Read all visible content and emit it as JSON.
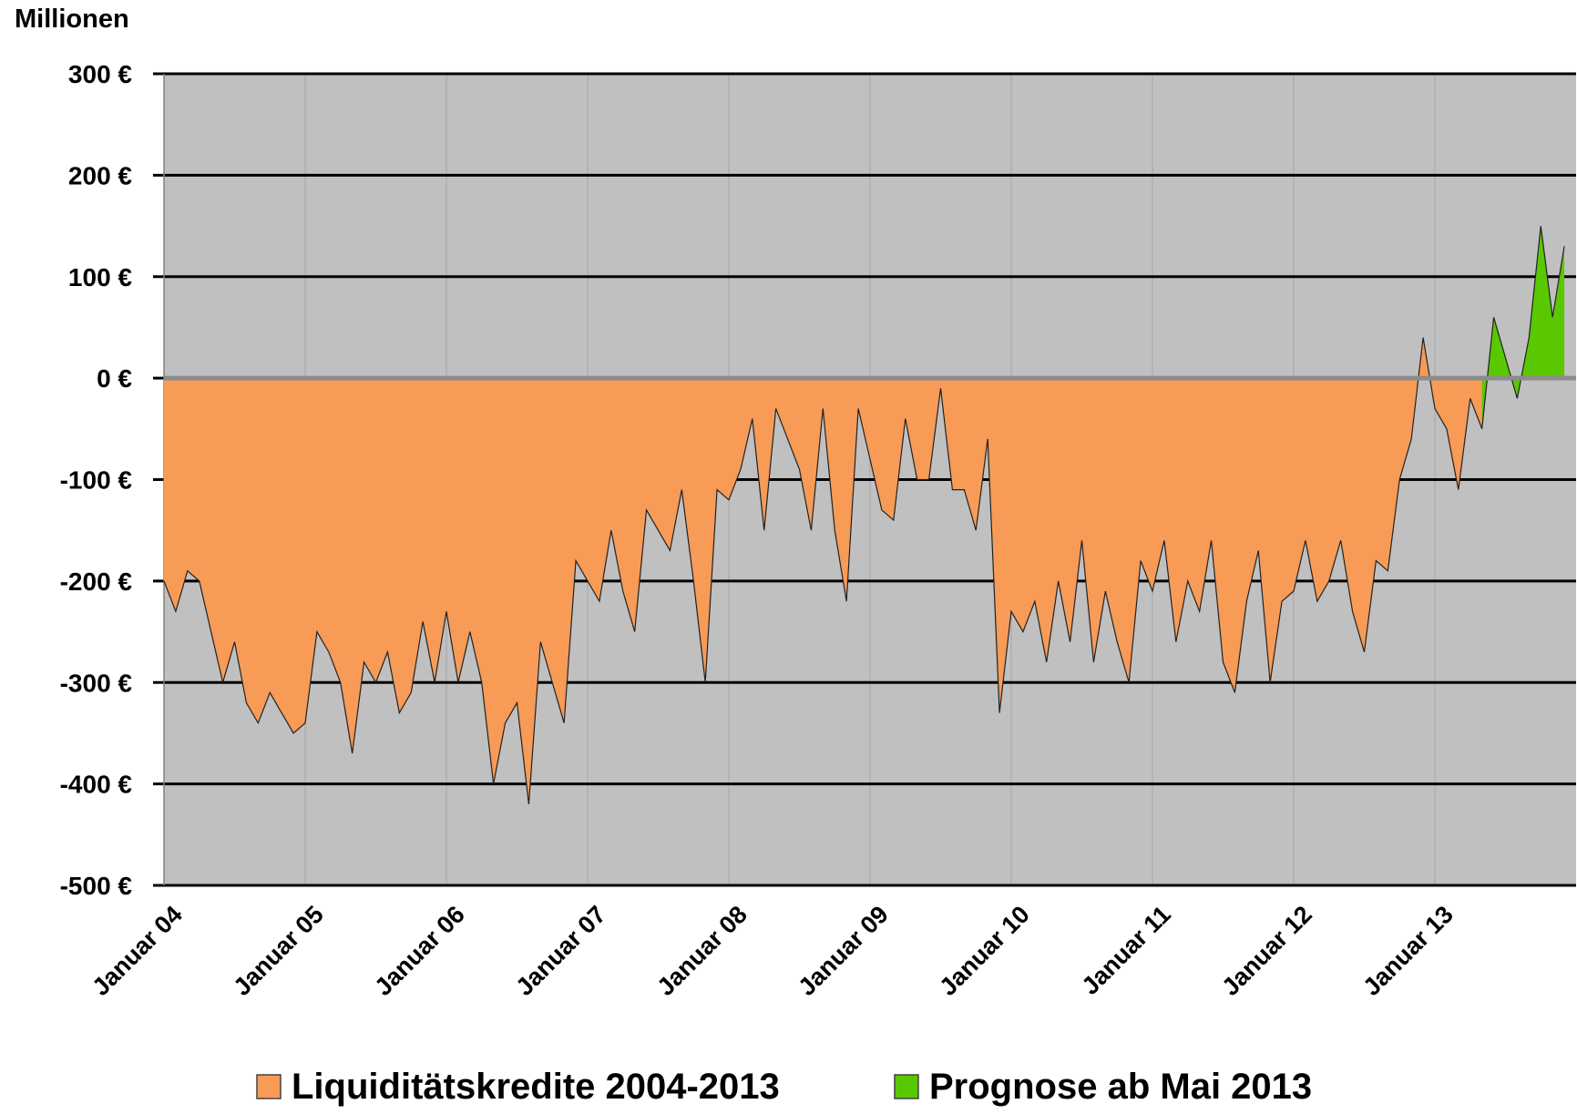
{
  "chart_data": {
    "type": "area",
    "y_label": "Millionen",
    "categories": [
      "Januar 04",
      null,
      null,
      null,
      null,
      null,
      null,
      null,
      null,
      null,
      null,
      null,
      "Januar 05",
      null,
      null,
      null,
      null,
      null,
      null,
      null,
      null,
      null,
      null,
      null,
      "Januar 06",
      null,
      null,
      null,
      null,
      null,
      null,
      null,
      null,
      null,
      null,
      null,
      "Januar 07",
      null,
      null,
      null,
      null,
      null,
      null,
      null,
      null,
      null,
      null,
      null,
      "Januar 08",
      null,
      null,
      null,
      null,
      null,
      null,
      null,
      null,
      null,
      null,
      null,
      "Januar 09",
      null,
      null,
      null,
      null,
      null,
      null,
      null,
      null,
      null,
      null,
      null,
      "Januar 10",
      null,
      null,
      null,
      null,
      null,
      null,
      null,
      null,
      null,
      null,
      null,
      "Januar 11",
      null,
      null,
      null,
      null,
      null,
      null,
      null,
      null,
      null,
      null,
      null,
      "Januar 12",
      null,
      null,
      null,
      null,
      null,
      null,
      null,
      null,
      null,
      null,
      null,
      "Januar 13",
      null,
      null,
      null,
      null,
      null,
      null,
      null,
      null,
      null,
      null,
      null
    ],
    "series": [
      {
        "name": "Liquiditätskredite 2004-2013",
        "color": "#f79b57",
        "values": [
          -200,
          -230,
          -190,
          -200,
          -250,
          -300,
          -260,
          -320,
          -340,
          -310,
          -330,
          -350,
          -340,
          -250,
          -270,
          -300,
          -370,
          -280,
          -300,
          -270,
          -330,
          -310,
          -240,
          -300,
          -230,
          -300,
          -250,
          -300,
          -400,
          -340,
          -320,
          -420,
          -260,
          -300,
          -340,
          -180,
          -200,
          -220,
          -150,
          -210,
          -250,
          -130,
          -150,
          -170,
          -110,
          -200,
          -300,
          -110,
          -120,
          -90,
          -40,
          -150,
          -30,
          -60,
          -90,
          -150,
          -30,
          -150,
          -220,
          -30,
          -80,
          -130,
          -140,
          -40,
          -100,
          -100,
          -10,
          -110,
          -110,
          -150,
          -60,
          -330,
          -230,
          -250,
          -220,
          -280,
          -200,
          -260,
          -160,
          -280,
          -210,
          -260,
          -300,
          -180,
          -210,
          -160,
          -260,
          -200,
          -230,
          -160,
          -280,
          -310,
          -220,
          -170,
          -300,
          -220,
          -210,
          -160,
          -220,
          -200,
          -160,
          -230,
          -270,
          -180,
          -190,
          -100,
          -60,
          40,
          -30,
          -50,
          -110,
          -20,
          -50,
          null,
          null,
          null,
          null,
          null,
          null,
          null
        ]
      },
      {
        "name": "Prognose ab Mai 2013",
        "color": "#5ac800",
        "values": [
          null,
          null,
          null,
          null,
          null,
          null,
          null,
          null,
          null,
          null,
          null,
          null,
          null,
          null,
          null,
          null,
          null,
          null,
          null,
          null,
          null,
          null,
          null,
          null,
          null,
          null,
          null,
          null,
          null,
          null,
          null,
          null,
          null,
          null,
          null,
          null,
          null,
          null,
          null,
          null,
          null,
          null,
          null,
          null,
          null,
          null,
          null,
          null,
          null,
          null,
          null,
          null,
          null,
          null,
          null,
          null,
          null,
          null,
          null,
          null,
          null,
          null,
          null,
          null,
          null,
          null,
          null,
          null,
          null,
          null,
          null,
          null,
          null,
          null,
          null,
          null,
          null,
          null,
          null,
          null,
          null,
          null,
          null,
          null,
          null,
          null,
          null,
          null,
          null,
          null,
          null,
          null,
          null,
          null,
          null,
          null,
          null,
          null,
          null,
          null,
          null,
          null,
          null,
          null,
          null,
          null,
          null,
          null,
          null,
          null,
          null,
          null,
          -50,
          60,
          20,
          -20,
          40,
          150,
          60,
          130
        ]
      }
    ],
    "ylim": [
      -500,
      300
    ],
    "yticks": [
      {
        "value": -500,
        "label": "-500 €"
      },
      {
        "value": -400,
        "label": "-400 €"
      },
      {
        "value": -300,
        "label": "-300 €"
      },
      {
        "value": -200,
        "label": "-200 €"
      },
      {
        "value": -100,
        "label": "-100 €"
      },
      {
        "value": 0,
        "label": "0 €"
      },
      {
        "value": 100,
        "label": "100 €"
      },
      {
        "value": 200,
        "label": "200 €"
      },
      {
        "value": 300,
        "label": "300 €"
      }
    ],
    "grid": true,
    "plot_background": "#c0c0c0",
    "legend": "bottom"
  }
}
